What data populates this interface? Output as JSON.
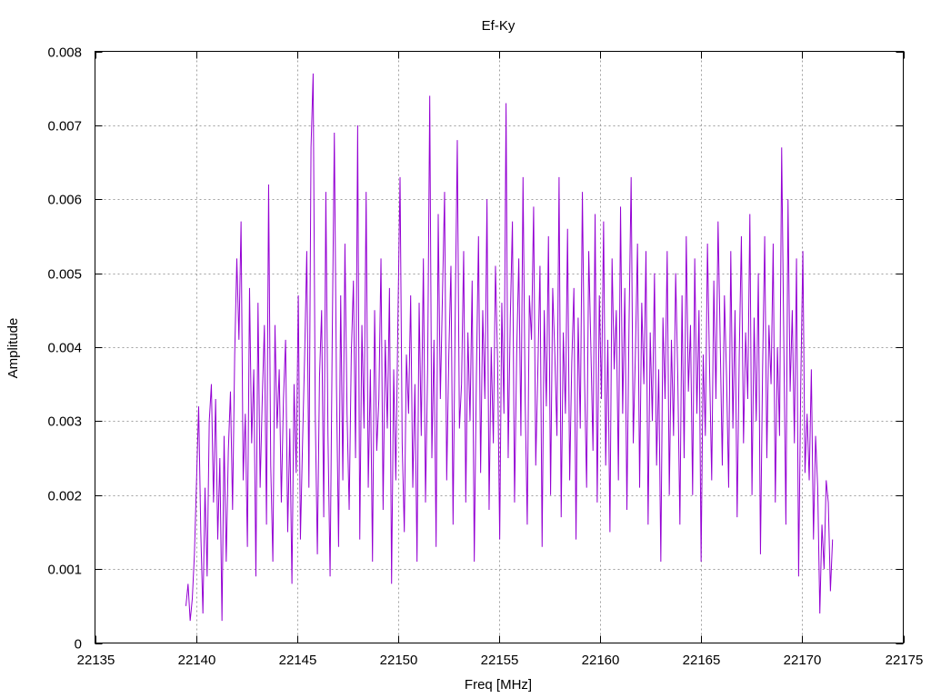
{
  "chart_data": {
    "type": "line",
    "title": "Ef-Ky",
    "xlabel": "Freq [MHz]",
    "ylabel": "Amplitude",
    "xlim": [
      22135,
      22175
    ],
    "ylim": [
      0,
      0.008
    ],
    "grid": true,
    "x_ticks": [
      22135,
      22140,
      22145,
      22150,
      22155,
      22160,
      22165,
      22170,
      22175
    ],
    "x_tick_labels": [
      "22135",
      "22140",
      "22145",
      "22150",
      "22155",
      "22160",
      "22165",
      "22170",
      "22175"
    ],
    "y_ticks": [
      0,
      0.001,
      0.002,
      0.003,
      0.004,
      0.005,
      0.006,
      0.007,
      0.008
    ],
    "y_tick_labels": [
      "0",
      "0.001",
      "0.002",
      "0.003",
      "0.004",
      "0.005",
      "0.006",
      "0.007",
      "0.008"
    ],
    "series": [
      {
        "color": "#9400d3",
        "x_start": 22139.5,
        "x_end": 22171.5,
        "values": [
          0.0005,
          0.0008,
          0.0003,
          0.0006,
          0.0012,
          0.0022,
          0.0032,
          0.0015,
          0.0004,
          0.0021,
          0.0009,
          0.003,
          0.0035,
          0.0019,
          0.0033,
          0.0014,
          0.0025,
          0.0003,
          0.0028,
          0.0011,
          0.0026,
          0.0034,
          0.0018,
          0.0039,
          0.0052,
          0.0041,
          0.0057,
          0.0022,
          0.0031,
          0.0013,
          0.0048,
          0.0027,
          0.0037,
          0.0009,
          0.0046,
          0.0021,
          0.0033,
          0.0043,
          0.0016,
          0.0062,
          0.0024,
          0.0011,
          0.0043,
          0.0029,
          0.0037,
          0.0019,
          0.0033,
          0.0041,
          0.0015,
          0.0029,
          0.0008,
          0.0035,
          0.0023,
          0.0047,
          0.0014,
          0.0027,
          0.0039,
          0.0053,
          0.0021,
          0.0067,
          0.0077,
          0.0031,
          0.0012,
          0.0036,
          0.0045,
          0.0017,
          0.0061,
          0.0028,
          0.0009,
          0.0041,
          0.0069,
          0.0035,
          0.0013,
          0.0047,
          0.0022,
          0.0054,
          0.0031,
          0.0018,
          0.0039,
          0.0049,
          0.0025,
          0.007,
          0.0014,
          0.0043,
          0.0029,
          0.0061,
          0.0021,
          0.0037,
          0.0011,
          0.0045,
          0.0026,
          0.0033,
          0.0052,
          0.0018,
          0.0041,
          0.0029,
          0.0048,
          0.0008,
          0.0037,
          0.0022,
          0.0044,
          0.0063,
          0.0027,
          0.0015,
          0.0039,
          0.0031,
          0.0047,
          0.0021,
          0.0035,
          0.0011,
          0.0046,
          0.0028,
          0.0052,
          0.0019,
          0.0037,
          0.0074,
          0.0025,
          0.0041,
          0.0013,
          0.0058,
          0.0033,
          0.0047,
          0.0061,
          0.0022,
          0.0039,
          0.0051,
          0.0016,
          0.0044,
          0.0068,
          0.0029,
          0.0035,
          0.0053,
          0.0019,
          0.0042,
          0.003,
          0.0049,
          0.0011,
          0.0036,
          0.0055,
          0.0023,
          0.0045,
          0.0033,
          0.006,
          0.0018,
          0.004,
          0.0027,
          0.0051,
          0.0038,
          0.0014,
          0.0046,
          0.0031,
          0.0073,
          0.0025,
          0.0044,
          0.0057,
          0.0019,
          0.0039,
          0.0052,
          0.0028,
          0.0063,
          0.0033,
          0.0016,
          0.0047,
          0.0041,
          0.0059,
          0.0024,
          0.0037,
          0.0051,
          0.0013,
          0.0045,
          0.0032,
          0.0055,
          0.002,
          0.0048,
          0.0039,
          0.0028,
          0.0063,
          0.0017,
          0.0042,
          0.0031,
          0.0056,
          0.0022,
          0.0038,
          0.0048,
          0.0014,
          0.0044,
          0.0029,
          0.0061,
          0.0036,
          0.0021,
          0.0053,
          0.004,
          0.0026,
          0.0058,
          0.0019,
          0.0047,
          0.0033,
          0.0057,
          0.0024,
          0.0041,
          0.0015,
          0.0052,
          0.0037,
          0.0045,
          0.0022,
          0.0059,
          0.0031,
          0.0048,
          0.0018,
          0.0043,
          0.0063,
          0.0027,
          0.0039,
          0.0054,
          0.0021,
          0.0046,
          0.0035,
          0.0053,
          0.0016,
          0.0042,
          0.003,
          0.005,
          0.0024,
          0.0037,
          0.0011,
          0.0044,
          0.0033,
          0.0053,
          0.002,
          0.0041,
          0.0028,
          0.005,
          0.0036,
          0.0016,
          0.0047,
          0.0025,
          0.0055,
          0.0034,
          0.0043,
          0.002,
          0.0052,
          0.0031,
          0.0045,
          0.0011,
          0.0039,
          0.0028,
          0.0054,
          0.0037,
          0.0022,
          0.0049,
          0.0033,
          0.0057,
          0.0041,
          0.0024,
          0.0047,
          0.0036,
          0.0021,
          0.0053,
          0.0029,
          0.0045,
          0.0017,
          0.0039,
          0.0055,
          0.0027,
          0.0042,
          0.0033,
          0.0058,
          0.002,
          0.0044,
          0.003,
          0.005,
          0.0012,
          0.0037,
          0.0055,
          0.0025,
          0.0043,
          0.0035,
          0.0054,
          0.0019,
          0.004,
          0.0028,
          0.0067,
          0.0041,
          0.0016,
          0.006,
          0.0034,
          0.0045,
          0.0027,
          0.0052,
          0.0009,
          0.0035,
          0.0053,
          0.0023,
          0.0031,
          0.0022,
          0.0037,
          0.0014,
          0.0028,
          0.0021,
          0.0004,
          0.0016,
          0.001,
          0.0022,
          0.0019,
          0.0007,
          0.0014
        ]
      }
    ]
  }
}
